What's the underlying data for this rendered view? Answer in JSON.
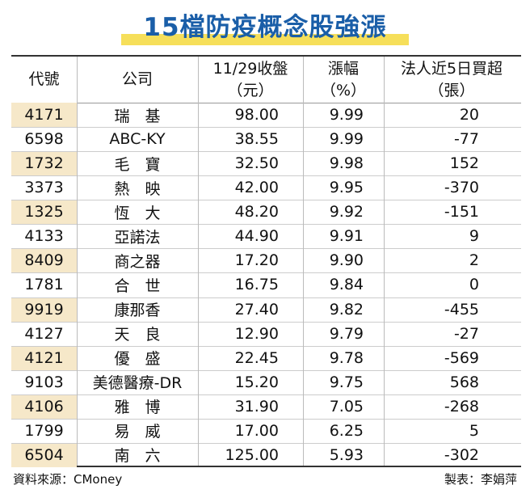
{
  "header": {
    "title": "15檔防疫概念股強漲"
  },
  "table": {
    "columns": [
      [
        "代號"
      ],
      [
        "公司"
      ],
      [
        "11/29收盤",
        "（元）"
      ],
      [
        "漲幅",
        "（%）"
      ],
      [
        "法人近5日買超",
        "（張）"
      ]
    ],
    "rows": [
      [
        "4171",
        "瑞　基",
        "98.00",
        "9.99",
        "20"
      ],
      [
        "6598",
        "ABC-KY",
        "38.55",
        "9.99",
        "-77"
      ],
      [
        "1732",
        "毛　寶",
        "32.50",
        "9.98",
        "152"
      ],
      [
        "3373",
        "熱　映",
        "42.00",
        "9.95",
        "-370"
      ],
      [
        "1325",
        "恆　大",
        "48.20",
        "9.92",
        "-151"
      ],
      [
        "4133",
        "亞諾法",
        "44.90",
        "9.91",
        "9"
      ],
      [
        "8409",
        "商之器",
        "17.20",
        "9.90",
        "2"
      ],
      [
        "1781",
        "合　世",
        "16.75",
        "9.84",
        "0"
      ],
      [
        "9919",
        "康那香",
        "27.40",
        "9.82",
        "-455"
      ],
      [
        "4127",
        "天　良",
        "12.90",
        "9.79",
        "-27"
      ],
      [
        "4121",
        "優　盛",
        "22.45",
        "9.78",
        "-569"
      ],
      [
        "9103",
        "美德醫療-DR",
        "15.20",
        "9.75",
        "568"
      ],
      [
        "4106",
        "雅　博",
        "31.90",
        "7.05",
        "-268"
      ],
      [
        "1799",
        "易　威",
        "17.00",
        "6.25",
        "5"
      ],
      [
        "6504",
        "南　六",
        "125.00",
        "5.93",
        "-302"
      ]
    ]
  },
  "footer": {
    "source": "資料來源：CMoney",
    "credit": "製表：李娟萍"
  }
}
